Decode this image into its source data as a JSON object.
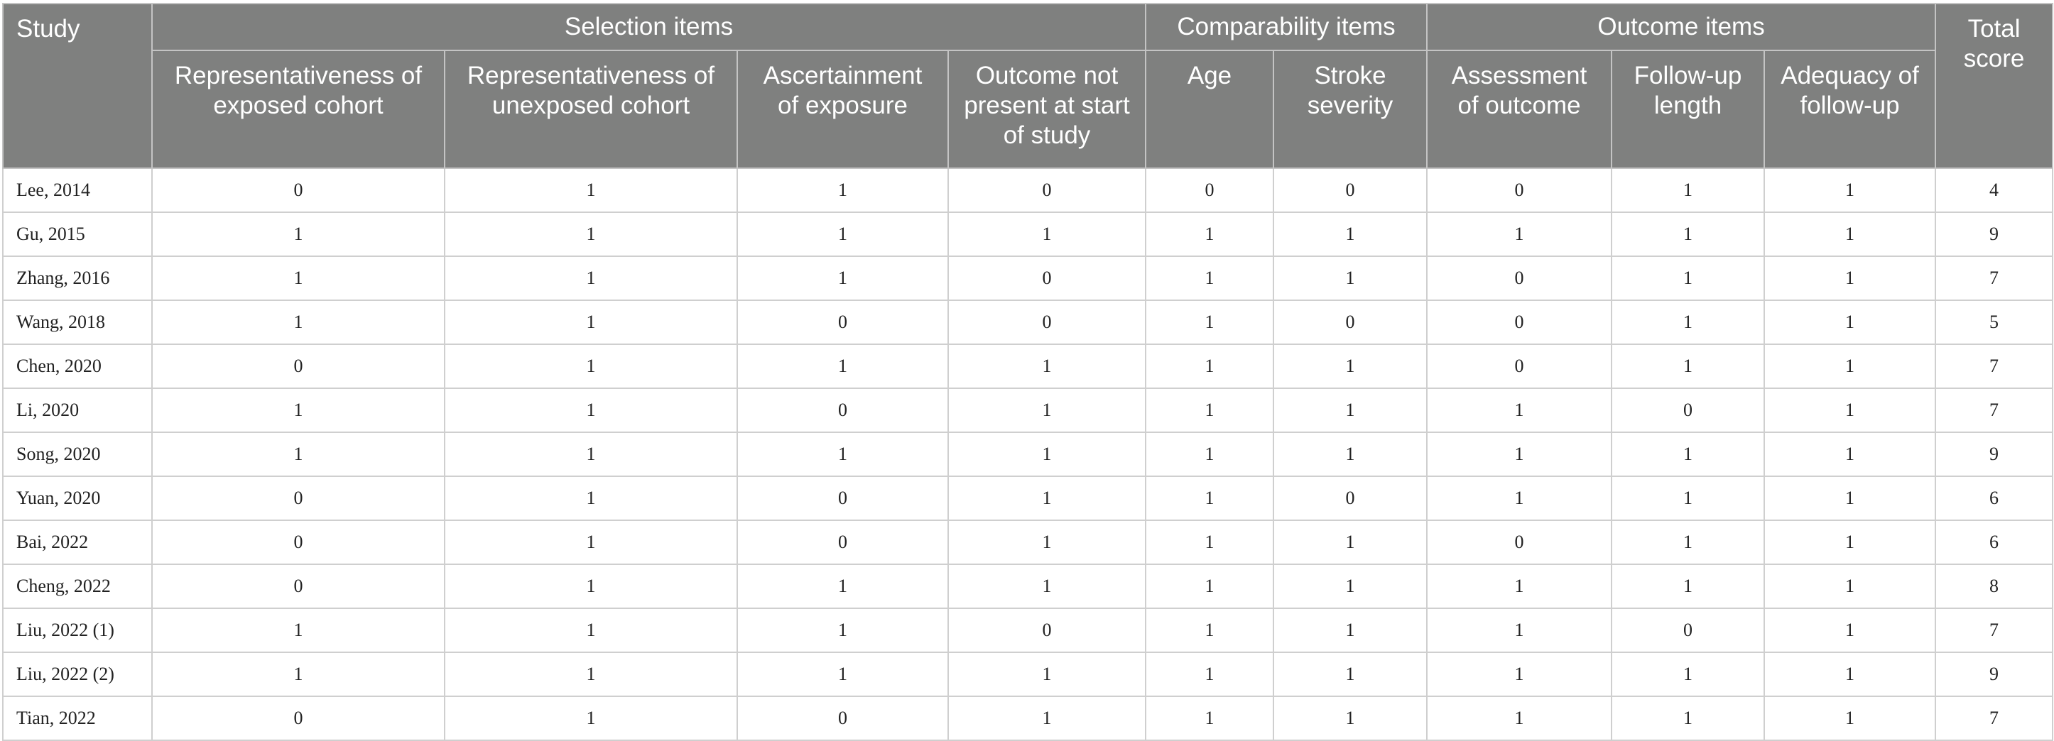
{
  "table": {
    "study_header": "Study",
    "total_header": "Total score",
    "groups": [
      {
        "label": "Selection items",
        "span": 4
      },
      {
        "label": "Comparability items",
        "span": 2
      },
      {
        "label": "Outcome items",
        "span": 3
      }
    ],
    "subheaders": [
      "Representativeness of exposed cohort",
      "Representativeness of unexposed cohort",
      "Ascertainment of exposure",
      "Outcome not present at start of study",
      "Age",
      "Stroke severity",
      "Assessment of outcome",
      "Follow-up length",
      "Adequacy of follow-up"
    ],
    "rows": [
      {
        "study": "Lee, 2014",
        "scores": [
          "0",
          "1",
          "1",
          "0",
          "0",
          "0",
          "0",
          "1",
          "1"
        ],
        "total": "4"
      },
      {
        "study": "Gu, 2015",
        "scores": [
          "1",
          "1",
          "1",
          "1",
          "1",
          "1",
          "1",
          "1",
          "1"
        ],
        "total": "9"
      },
      {
        "study": "Zhang, 2016",
        "scores": [
          "1",
          "1",
          "1",
          "0",
          "1",
          "1",
          "0",
          "1",
          "1"
        ],
        "total": "7"
      },
      {
        "study": "Wang, 2018",
        "scores": [
          "1",
          "1",
          "0",
          "0",
          "1",
          "0",
          "0",
          "1",
          "1"
        ],
        "total": "5"
      },
      {
        "study": "Chen, 2020",
        "scores": [
          "0",
          "1",
          "1",
          "1",
          "1",
          "1",
          "0",
          "1",
          "1"
        ],
        "total": "7"
      },
      {
        "study": "Li, 2020",
        "scores": [
          "1",
          "1",
          "0",
          "1",
          "1",
          "1",
          "1",
          "0",
          "1"
        ],
        "total": "7"
      },
      {
        "study": "Song, 2020",
        "scores": [
          "1",
          "1",
          "1",
          "1",
          "1",
          "1",
          "1",
          "1",
          "1"
        ],
        "total": "9"
      },
      {
        "study": "Yuan, 2020",
        "scores": [
          "0",
          "1",
          "0",
          "1",
          "1",
          "0",
          "1",
          "1",
          "1"
        ],
        "total": "6"
      },
      {
        "study": "Bai, 2022",
        "scores": [
          "0",
          "1",
          "0",
          "1",
          "1",
          "1",
          "0",
          "1",
          "1"
        ],
        "total": "6"
      },
      {
        "study": "Cheng, 2022",
        "scores": [
          "0",
          "1",
          "1",
          "1",
          "1",
          "1",
          "1",
          "1",
          "1"
        ],
        "total": "8"
      },
      {
        "study": "Liu, 2022 (1)",
        "scores": [
          "1",
          "1",
          "1",
          "0",
          "1",
          "1",
          "1",
          "0",
          "1"
        ],
        "total": "7"
      },
      {
        "study": "Liu, 2022 (2)",
        "scores": [
          "1",
          "1",
          "1",
          "1",
          "1",
          "1",
          "1",
          "1",
          "1"
        ],
        "total": "9"
      },
      {
        "study": "Tian, 2022",
        "scores": [
          "0",
          "1",
          "0",
          "1",
          "1",
          "1",
          "1",
          "1",
          "1"
        ],
        "total": "7"
      }
    ]
  }
}
